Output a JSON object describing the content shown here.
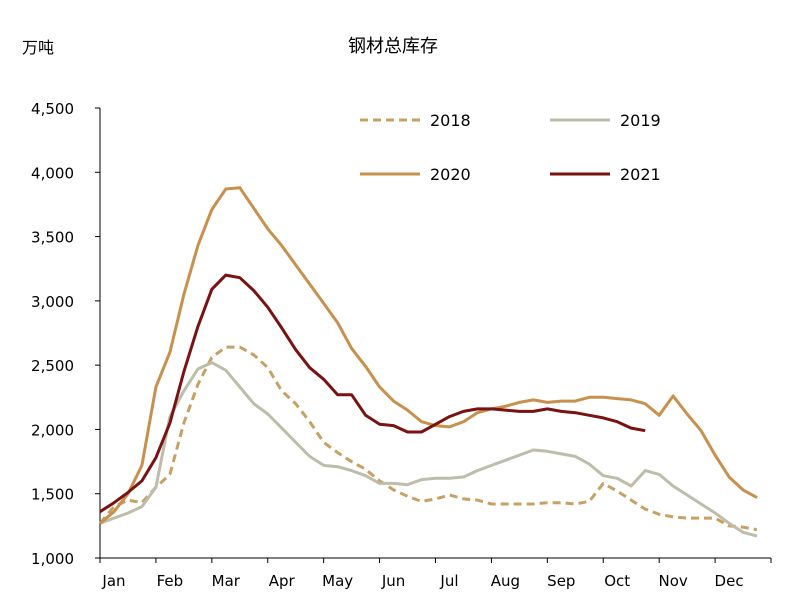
{
  "chart_data": {
    "type": "line",
    "title": "钢材总库存",
    "ylabel": "万吨",
    "xlabel": "",
    "ylim": [
      1000,
      4500
    ],
    "y_ticks": [
      1000,
      1500,
      2000,
      2500,
      3000,
      3500,
      4000,
      4500
    ],
    "y_tick_labels": [
      "1,000",
      "1,500",
      "2,000",
      "2,500",
      "3,000",
      "3,500",
      "4,000",
      "4,500"
    ],
    "x_ticks": [
      1,
      5,
      9,
      13,
      17,
      21,
      25,
      29,
      33,
      37,
      41,
      45
    ],
    "x_tick_labels": [
      "Jan",
      "Feb",
      "Mar",
      "Apr",
      "May",
      "Jun",
      "Jul",
      "Aug",
      "Sep",
      "Oct",
      "Nov",
      "Dec"
    ],
    "xlim": [
      0,
      48
    ],
    "legend_position": "top-right",
    "grid": false,
    "series": [
      {
        "name": "2018",
        "color": "#c8a064",
        "style": "dashed",
        "x": [
          0,
          1,
          2,
          3,
          4,
          5,
          6,
          7,
          8,
          9,
          10,
          11,
          12,
          13,
          14,
          15,
          16,
          17,
          18,
          19,
          20,
          21,
          22,
          23,
          24,
          25,
          26,
          27,
          28,
          29,
          30,
          31,
          32,
          33,
          34,
          35,
          36,
          37,
          38,
          39,
          40,
          41,
          42,
          43,
          44,
          45,
          46,
          47
        ],
        "y": [
          1270,
          1400,
          1450,
          1430,
          1550,
          1650,
          2050,
          2350,
          2560,
          2640,
          2640,
          2580,
          2480,
          2300,
          2200,
          2060,
          1900,
          1820,
          1750,
          1690,
          1600,
          1530,
          1480,
          1440,
          1460,
          1490,
          1460,
          1450,
          1420,
          1420,
          1420,
          1420,
          1430,
          1430,
          1420,
          1440,
          1580,
          1520,
          1450,
          1380,
          1340,
          1320,
          1310,
          1310,
          1310,
          1250,
          1240,
          1220
        ]
      },
      {
        "name": "2019",
        "color": "#bdbdaa",
        "style": "solid",
        "x": [
          0,
          1,
          2,
          3,
          4,
          5,
          6,
          7,
          8,
          9,
          10,
          11,
          12,
          13,
          14,
          15,
          16,
          17,
          18,
          19,
          20,
          21,
          22,
          23,
          24,
          25,
          26,
          27,
          28,
          29,
          30,
          31,
          32,
          33,
          34,
          35,
          36,
          37,
          38,
          39,
          40,
          41,
          42,
          43,
          44,
          45,
          46,
          47
        ],
        "y": [
          1270,
          1310,
          1350,
          1400,
          1550,
          2100,
          2300,
          2470,
          2520,
          2460,
          2330,
          2200,
          2120,
          2010,
          1900,
          1790,
          1720,
          1710,
          1680,
          1640,
          1580,
          1580,
          1570,
          1610,
          1620,
          1620,
          1630,
          1680,
          1720,
          1760,
          1800,
          1840,
          1830,
          1810,
          1790,
          1730,
          1640,
          1620,
          1560,
          1680,
          1650,
          1560,
          1490,
          1420,
          1350,
          1270,
          1200,
          1170
        ]
      },
      {
        "name": "2020",
        "color": "#c8904c",
        "style": "solid",
        "x": [
          0,
          1,
          2,
          3,
          4,
          5,
          6,
          7,
          8,
          9,
          10,
          11,
          12,
          13,
          14,
          15,
          16,
          17,
          18,
          19,
          20,
          21,
          22,
          23,
          24,
          25,
          26,
          27,
          28,
          29,
          30,
          31,
          32,
          33,
          34,
          35,
          36,
          37,
          38,
          39,
          40,
          41,
          42,
          43,
          44,
          45,
          46,
          47
        ],
        "y": [
          1270,
          1360,
          1500,
          1720,
          2330,
          2600,
          3050,
          3430,
          3710,
          3870,
          3880,
          3720,
          3560,
          3430,
          3280,
          3130,
          2980,
          2830,
          2630,
          2490,
          2330,
          2220,
          2150,
          2060,
          2030,
          2020,
          2060,
          2130,
          2160,
          2180,
          2210,
          2230,
          2210,
          2220,
          2220,
          2250,
          2250,
          2240,
          2230,
          2200,
          2110,
          2260,
          2120,
          1990,
          1800,
          1630,
          1530,
          1470
        ]
      },
      {
        "name": "2021",
        "color": "#7a1212",
        "style": "solid",
        "x": [
          0,
          1,
          2,
          3,
          4,
          5,
          6,
          7,
          8,
          9,
          10,
          11,
          12,
          13,
          14,
          15,
          16,
          17,
          18,
          19,
          20,
          21,
          22,
          23,
          24,
          25,
          26,
          27,
          28,
          29,
          30,
          31,
          32,
          33,
          34,
          35,
          36,
          37,
          38,
          39
        ],
        "y": [
          1360,
          1430,
          1510,
          1600,
          1780,
          2050,
          2450,
          2800,
          3090,
          3200,
          3180,
          3080,
          2950,
          2790,
          2620,
          2480,
          2390,
          2270,
          2270,
          2110,
          2040,
          2030,
          1980,
          1980,
          2040,
          2100,
          2140,
          2160,
          2160,
          2150,
          2140,
          2140,
          2160,
          2140,
          2130,
          2110,
          2090,
          2060,
          2010,
          1990
        ]
      }
    ]
  }
}
